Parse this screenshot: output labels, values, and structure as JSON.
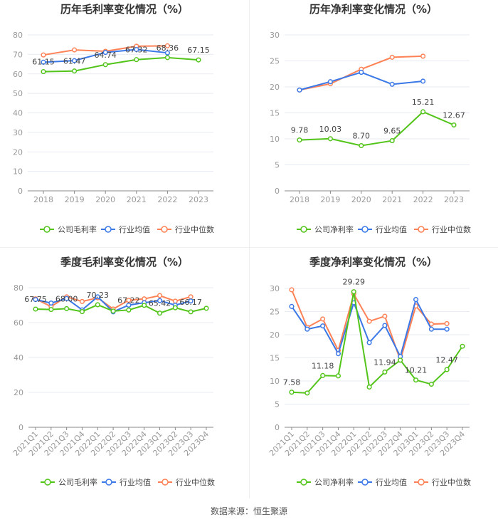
{
  "colors": {
    "company": "#52c41a",
    "average": "#3b78e7",
    "median": "#ff8256",
    "grid": "#e8ebf3",
    "axis": "#999"
  },
  "legend": [
    "公司毛利率",
    "行业均值",
    "行业中位数"
  ],
  "source": "数据来源：恒生聚源",
  "chart_data": [
    {
      "type": "line",
      "title": "历年毛利率变化情况（%）",
      "categories": [
        "2018",
        "2019",
        "2020",
        "2021",
        "2022",
        "2023"
      ],
      "ylim": [
        0,
        80
      ],
      "yticks": [
        0,
        10,
        20,
        30,
        40,
        50,
        60,
        70,
        80
      ],
      "legend": [
        "公司毛利率",
        "行业均值",
        "行业中位数"
      ],
      "series": [
        {
          "name": "公司毛利率",
          "values": [
            61.15,
            61.47,
            64.74,
            67.32,
            68.36,
            67.15
          ],
          "labels": [
            "61.15",
            "61.47",
            "64.74",
            "67.32",
            "68.36",
            "67.15"
          ]
        },
        {
          "name": "行业均值",
          "values": [
            66.0,
            66.8,
            71.0,
            72.5,
            70.8,
            null
          ]
        },
        {
          "name": "行业中位数",
          "values": [
            69.7,
            72.3,
            71.6,
            74.2,
            74.4,
            null
          ]
        }
      ]
    },
    {
      "type": "line",
      "title": "历年净利率变化情况（%）",
      "categories": [
        "2018",
        "2019",
        "2020",
        "2021",
        "2022",
        "2023"
      ],
      "ylim": [
        0,
        30
      ],
      "yticks": [
        0,
        5,
        10,
        15,
        20,
        25,
        30
      ],
      "legend": [
        "公司净利率",
        "行业均值",
        "行业中位数"
      ],
      "series": [
        {
          "name": "公司净利率",
          "values": [
            9.78,
            10.03,
            8.7,
            9.65,
            15.21,
            12.67
          ],
          "labels": [
            "9.78",
            "10.03",
            "8.70",
            "9.65",
            "15.21",
            "12.67"
          ]
        },
        {
          "name": "行业均值",
          "values": [
            19.4,
            21.0,
            22.8,
            20.5,
            21.1,
            null
          ]
        },
        {
          "name": "行业中位数",
          "values": [
            19.4,
            20.6,
            23.4,
            25.7,
            25.9,
            null
          ]
        }
      ]
    },
    {
      "type": "line",
      "title": "季度毛利率变化情况（%）",
      "categories": [
        "2021Q1",
        "2021Q2",
        "2021Q3",
        "2021Q4",
        "2022Q1",
        "2022Q2",
        "2022Q3",
        "2022Q4",
        "2023Q1",
        "2023Q2",
        "2023Q3",
        "2023Q4"
      ],
      "ylim": [
        0,
        80
      ],
      "yticks": [
        0,
        20,
        40,
        60,
        80
      ],
      "legend": [
        "公司毛利率",
        "行业均值",
        "行业中位数"
      ],
      "series": [
        {
          "name": "公司毛利率",
          "values": [
            67.75,
            67.5,
            68.0,
            66.3,
            70.23,
            66.6,
            67.22,
            69.9,
            65.42,
            68.5,
            66.17,
            68.2
          ],
          "labels": [
            "67.75",
            "",
            "68.00",
            "",
            "70.23",
            "",
            "67.22",
            "",
            "65.42",
            "",
            "66.17",
            ""
          ]
        },
        {
          "name": "行业均值",
          "values": [
            73.2,
            71.2,
            73.8,
            67.3,
            74.8,
            66.2,
            70.0,
            71.4,
            72.6,
            70.0,
            72.4,
            null
          ]
        },
        {
          "name": "行业中位数",
          "values": [
            73.6,
            69.2,
            74.8,
            72.1,
            74.2,
            67.8,
            72.8,
            73.6,
            75.5,
            72.3,
            74.8,
            null
          ]
        }
      ]
    },
    {
      "type": "line",
      "title": "季度净利率变化情况（%）",
      "categories": [
        "2021Q1",
        "2021Q2",
        "2021Q3",
        "2021Q4",
        "2022Q1",
        "2022Q2",
        "2022Q3",
        "2022Q4",
        "2023Q1",
        "2023Q2",
        "2023Q3",
        "2023Q4"
      ],
      "ylim": [
        0,
        30
      ],
      "yticks": [
        0,
        5,
        10,
        15,
        20,
        25,
        30
      ],
      "legend": [
        "公司净利率",
        "行业均值",
        "行业中位数"
      ],
      "series": [
        {
          "name": "公司净利率",
          "values": [
            7.58,
            7.4,
            11.18,
            11.1,
            29.29,
            8.7,
            11.94,
            14.5,
            10.21,
            9.3,
            12.47,
            17.5
          ],
          "labels": [
            "7.58",
            "",
            "11.18",
            "",
            "29.29",
            "",
            "11.94",
            "",
            "10.21",
            "",
            "12.47",
            ""
          ]
        },
        {
          "name": "行业均值",
          "values": [
            26.1,
            21.2,
            21.9,
            15.9,
            26.9,
            18.3,
            22.0,
            15.3,
            27.6,
            21.2,
            21.2,
            null
          ]
        },
        {
          "name": "行业中位数",
          "values": [
            29.7,
            21.6,
            23.4,
            16.6,
            28.8,
            22.9,
            24.0,
            14.5,
            26.2,
            22.3,
            22.4,
            null
          ]
        }
      ]
    }
  ]
}
